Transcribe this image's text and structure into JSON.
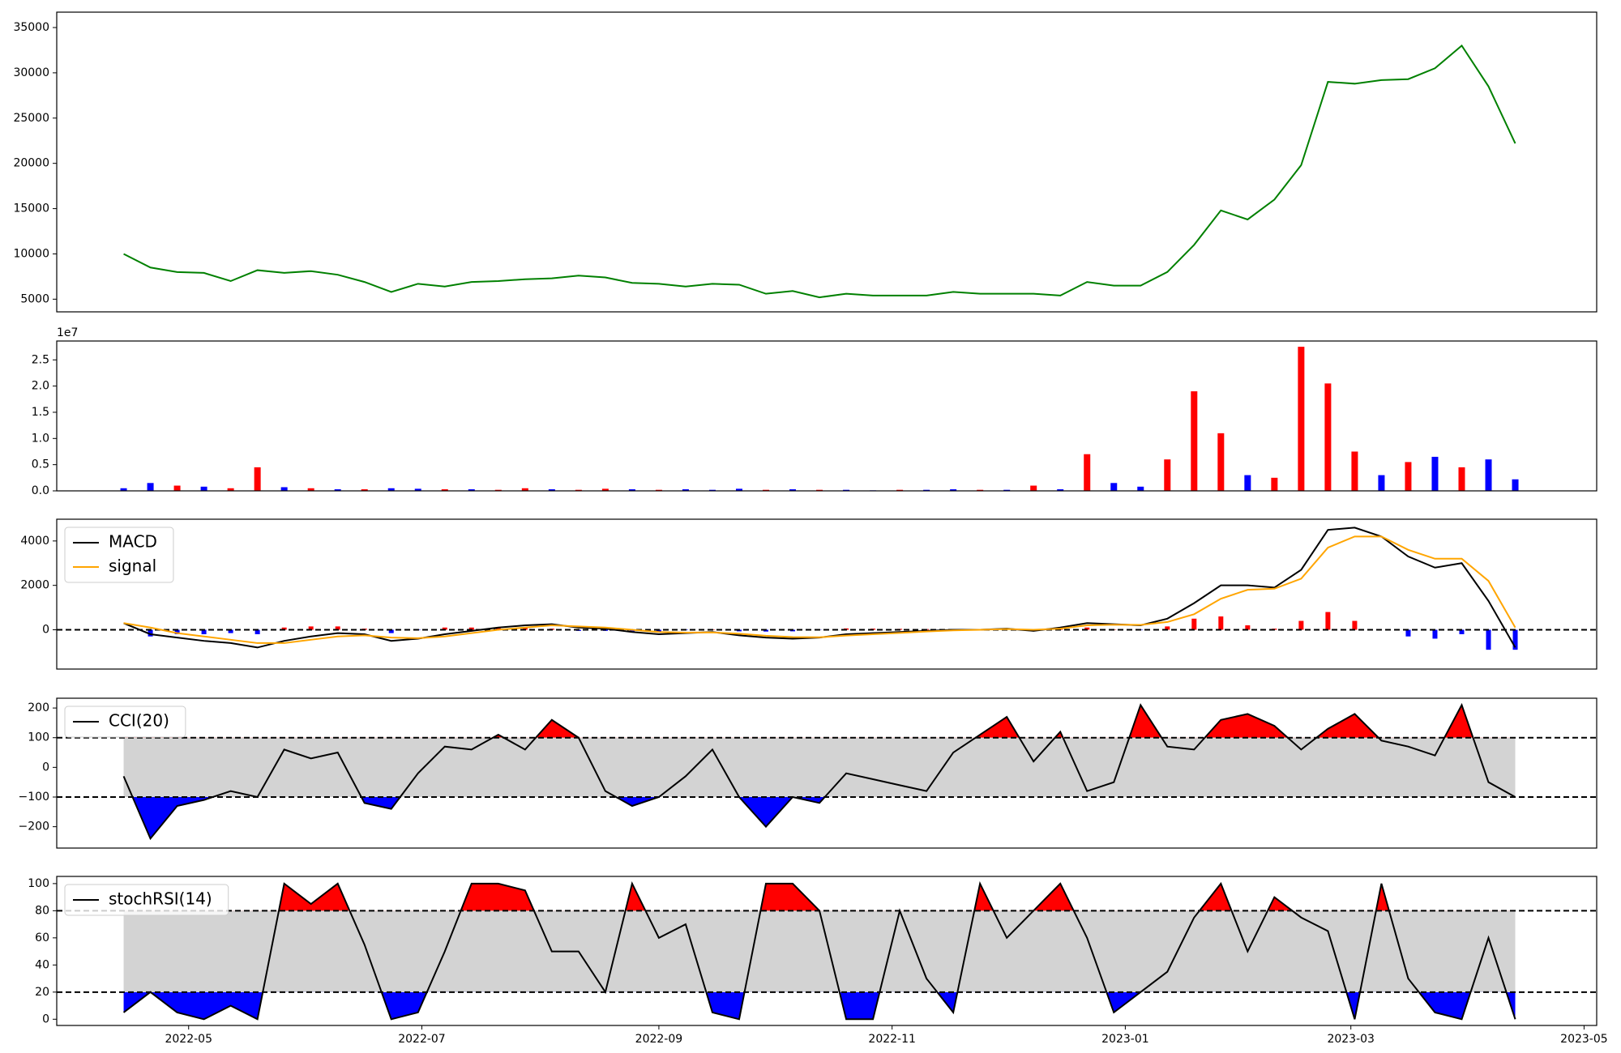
{
  "chart_data": [
    {
      "type": "line",
      "x": [
        19096,
        19103,
        19110,
        19117,
        19124,
        19131,
        19138,
        19145,
        19152,
        19159,
        19166,
        19173,
        19180,
        19187,
        19194,
        19201,
        19208,
        19215,
        19222,
        19229,
        19236,
        19243,
        19250,
        19257,
        19264,
        19271,
        19278,
        19285,
        19292,
        19299,
        19306,
        19313,
        19320,
        19327,
        19334,
        19341,
        19348,
        19355,
        19362,
        19369,
        19376,
        19383,
        19390,
        19397,
        19404,
        19411,
        19418,
        19425,
        19432,
        19439,
        19446,
        19453,
        19460
      ],
      "values": [
        10000,
        8500,
        8000,
        7900,
        7000,
        8200,
        7900,
        8100,
        7700,
        6900,
        5800,
        6700,
        6400,
        6900,
        7000,
        7200,
        7300,
        7600,
        7400,
        6800,
        6700,
        6400,
        6700,
        6600,
        5600,
        5900,
        5200,
        5600,
        5400,
        5400,
        5400,
        5800,
        5600,
        5600,
        5600,
        5400,
        6900,
        6500,
        6500,
        8000,
        11000,
        14800,
        13800,
        16000,
        19800,
        29000,
        28800,
        29200,
        29300,
        30500,
        33000,
        28500,
        22200
      ],
      "color": "#008000",
      "xlim": [
        19078.5,
        19481.3
      ],
      "ylim": [
        3600,
        36700
      ],
      "yticks": [
        5000,
        10000,
        15000,
        20000,
        25000,
        30000,
        35000
      ]
    },
    {
      "type": "bar",
      "x": [
        19096,
        19103,
        19110,
        19117,
        19124,
        19131,
        19138,
        19145,
        19152,
        19159,
        19166,
        19173,
        19180,
        19187,
        19194,
        19201,
        19208,
        19215,
        19222,
        19229,
        19236,
        19243,
        19250,
        19257,
        19264,
        19271,
        19278,
        19285,
        19292,
        19299,
        19306,
        19313,
        19320,
        19327,
        19334,
        19341,
        19348,
        19355,
        19362,
        19369,
        19376,
        19383,
        19390,
        19397,
        19404,
        19411,
        19418,
        19425,
        19432,
        19439,
        19446,
        19453,
        19460
      ],
      "values": [
        0.05,
        0.15,
        0.1,
        0.08,
        0.05,
        0.45,
        0.07,
        0.05,
        0.03,
        0.03,
        0.05,
        0.04,
        0.03,
        0.03,
        0.02,
        0.05,
        0.03,
        0.02,
        0.04,
        0.03,
        0.02,
        0.03,
        0.02,
        0.04,
        0.02,
        0.03,
        0.02,
        0.02,
        0.01,
        0.02,
        0.02,
        0.03,
        0.02,
        0.02,
        0.1,
        0.03,
        0.7,
        0.15,
        0.08,
        0.6,
        1.9,
        1.1,
        0.3,
        0.25,
        2.75,
        2.05,
        0.75,
        0.3,
        0.55,
        0.65,
        0.45,
        0.6,
        0.22
      ],
      "colors": [
        "blue",
        "blue",
        "red",
        "blue",
        "red",
        "red",
        "blue",
        "red",
        "blue",
        "red",
        "blue",
        "blue",
        "red",
        "blue",
        "red",
        "red",
        "blue",
        "red",
        "red",
        "blue",
        "red",
        "blue",
        "blue",
        "blue",
        "red",
        "blue",
        "red",
        "blue",
        "blue",
        "red",
        "blue",
        "blue",
        "red",
        "blue",
        "red",
        "blue",
        "red",
        "blue",
        "blue",
        "red",
        "red",
        "red",
        "blue",
        "red",
        "red",
        "red",
        "red",
        "blue",
        "red",
        "blue",
        "red",
        "blue",
        "blue"
      ],
      "offset_label": "1e7",
      "xlim": [
        19078.5,
        19481.3
      ],
      "ylim": [
        0,
        2.86
      ],
      "yticks": [
        {
          "value": 0,
          "label": "0.0"
        },
        0.5,
        {
          "value": 1,
          "label": "1.0"
        },
        1.5,
        {
          "value": 2,
          "label": "2.0"
        },
        2.5
      ]
    },
    {
      "type": "macd",
      "x": [
        19096,
        19103,
        19110,
        19117,
        19124,
        19131,
        19138,
        19145,
        19152,
        19159,
        19166,
        19173,
        19180,
        19187,
        19194,
        19201,
        19208,
        19215,
        19222,
        19229,
        19236,
        19243,
        19250,
        19257,
        19264,
        19271,
        19278,
        19285,
        19292,
        19299,
        19306,
        19313,
        19320,
        19327,
        19334,
        19341,
        19348,
        19355,
        19362,
        19369,
        19376,
        19383,
        19390,
        19397,
        19404,
        19411,
        19418,
        19425,
        19432,
        19439,
        19446,
        19453,
        19460
      ],
      "series": [
        {
          "name": "MACD",
          "color": "#000000",
          "values": [
            300,
            -200,
            -350,
            -500,
            -600,
            -800,
            -500,
            -300,
            -150,
            -200,
            -500,
            -400,
            -200,
            -50,
            100,
            200,
            250,
            100,
            50,
            -100,
            -200,
            -150,
            -100,
            -250,
            -350,
            -400,
            -350,
            -200,
            -150,
            -100,
            -50,
            0,
            0,
            50,
            -50,
            100,
            300,
            250,
            200,
            500,
            1200,
            2000,
            2000,
            1900,
            2700,
            4500,
            4600,
            4200,
            3300,
            2800,
            3000,
            1300,
            -800
          ]
        },
        {
          "name": "signal",
          "color": "#ffa500",
          "values": [
            300,
            100,
            -150,
            -300,
            -450,
            -600,
            -600,
            -450,
            -300,
            -250,
            -350,
            -380,
            -300,
            -150,
            0,
            100,
            200,
            150,
            100,
            0,
            -100,
            -130,
            -120,
            -180,
            -270,
            -330,
            -340,
            -260,
            -200,
            -140,
            -80,
            -30,
            0,
            30,
            0,
            50,
            200,
            230,
            220,
            350,
            700,
            1400,
            1800,
            1850,
            2300,
            3700,
            4200,
            4200,
            3600,
            3200,
            3200,
            2200,
            100
          ]
        }
      ],
      "histogram": {
        "values": [
          0,
          -300,
          -200,
          -200,
          -150,
          -200,
          100,
          150,
          150,
          50,
          -150,
          -20,
          100,
          100,
          100,
          100,
          50,
          -50,
          -50,
          -100,
          -100,
          -20,
          20,
          -70,
          -80,
          -70,
          -10,
          60,
          50,
          40,
          30,
          30,
          0,
          20,
          -50,
          50,
          100,
          20,
          -20,
          150,
          500,
          600,
          200,
          50,
          400,
          800,
          400,
          0,
          -300,
          -400,
          -200,
          -900,
          -900
        ],
        "pos_color": "#ff0000",
        "neg_color": "#0000ff"
      },
      "hlines": [
        0
      ],
      "legend": "upper left",
      "xlim": [
        19078.5,
        19481.3
      ],
      "ylim": [
        -1770,
        4980
      ],
      "yticks": [
        0,
        2000,
        4000
      ]
    },
    {
      "type": "oscillator",
      "x": [
        19096,
        19103,
        19110,
        19117,
        19124,
        19131,
        19138,
        19145,
        19152,
        19159,
        19166,
        19173,
        19180,
        19187,
        19194,
        19201,
        19208,
        19215,
        19222,
        19229,
        19236,
        19243,
        19250,
        19257,
        19264,
        19271,
        19278,
        19285,
        19292,
        19299,
        19306,
        19313,
        19320,
        19327,
        19334,
        19341,
        19348,
        19355,
        19362,
        19369,
        19376,
        19383,
        19390,
        19397,
        19404,
        19411,
        19418,
        19425,
        19432,
        19439,
        19446,
        19453,
        19460
      ],
      "series": [
        {
          "name": "CCI(20)",
          "color": "#000000",
          "values": [
            -30,
            -240,
            -130,
            -110,
            -80,
            -100,
            60,
            30,
            50,
            -120,
            -140,
            -20,
            70,
            60,
            110,
            60,
            160,
            100,
            -80,
            -130,
            -100,
            -30,
            60,
            -100,
            -200,
            -100,
            -120,
            -20,
            -40,
            -60,
            -80,
            50,
            110,
            170,
            20,
            120,
            -80,
            -50,
            210,
            70,
            60,
            160,
            180,
            140,
            60,
            130,
            180,
            90,
            70,
            40,
            210,
            -50,
            -100
          ]
        }
      ],
      "hlines": [
        100,
        -100
      ],
      "overbought_color": "#ff0000",
      "oversold_color": "#0000ff",
      "band_color": "#d3d3d3",
      "legend": "upper left",
      "xlim": [
        19078.5,
        19481.3
      ],
      "ylim": [
        -272,
        233
      ],
      "yticks": [
        {
          "value": -200,
          "label": "−200"
        },
        {
          "value": -100,
          "label": "−100"
        },
        0,
        100,
        200
      ]
    },
    {
      "type": "oscillator",
      "x": [
        19096,
        19103,
        19110,
        19117,
        19124,
        19131,
        19138,
        19145,
        19152,
        19159,
        19166,
        19173,
        19180,
        19187,
        19194,
        19201,
        19208,
        19215,
        19222,
        19229,
        19236,
        19243,
        19250,
        19257,
        19264,
        19271,
        19278,
        19285,
        19292,
        19299,
        19306,
        19313,
        19320,
        19327,
        19334,
        19341,
        19348,
        19355,
        19362,
        19369,
        19376,
        19383,
        19390,
        19397,
        19404,
        19411,
        19418,
        19425,
        19432,
        19439,
        19446,
        19453,
        19460
      ],
      "series": [
        {
          "name": "stochRSI(14)",
          "color": "#000000",
          "values": [
            5,
            20,
            5,
            0,
            10,
            0,
            100,
            85,
            100,
            55,
            0,
            5,
            50,
            100,
            100,
            95,
            50,
            50,
            20,
            100,
            60,
            70,
            5,
            0,
            100,
            100,
            80,
            0,
            0,
            80,
            30,
            5,
            100,
            60,
            80,
            100,
            60,
            5,
            20,
            35,
            75,
            100,
            50,
            90,
            75,
            65,
            0,
            100,
            30,
            5,
            0,
            60,
            0
          ]
        }
      ],
      "hlines": [
        80,
        20
      ],
      "overbought_color": "#ff0000",
      "oversold_color": "#0000ff",
      "band_color": "#d3d3d3",
      "legend": "upper left",
      "xlim": [
        19078.5,
        19481.3
      ],
      "ylim": [
        -4.6,
        105.3
      ],
      "yticks": [
        0,
        20,
        40,
        60,
        80,
        100
      ],
      "xticks": [
        {
          "value": 19113,
          "label": "2022-05"
        },
        {
          "value": 19174,
          "label": "2022-07"
        },
        {
          "value": 19236,
          "label": "2022-09"
        },
        {
          "value": 19297,
          "label": "2022-11"
        },
        {
          "value": 19358,
          "label": "2023-01"
        },
        {
          "value": 19417,
          "label": "2023-03"
        },
        {
          "value": 19478,
          "label": "2023-05"
        }
      ]
    }
  ]
}
